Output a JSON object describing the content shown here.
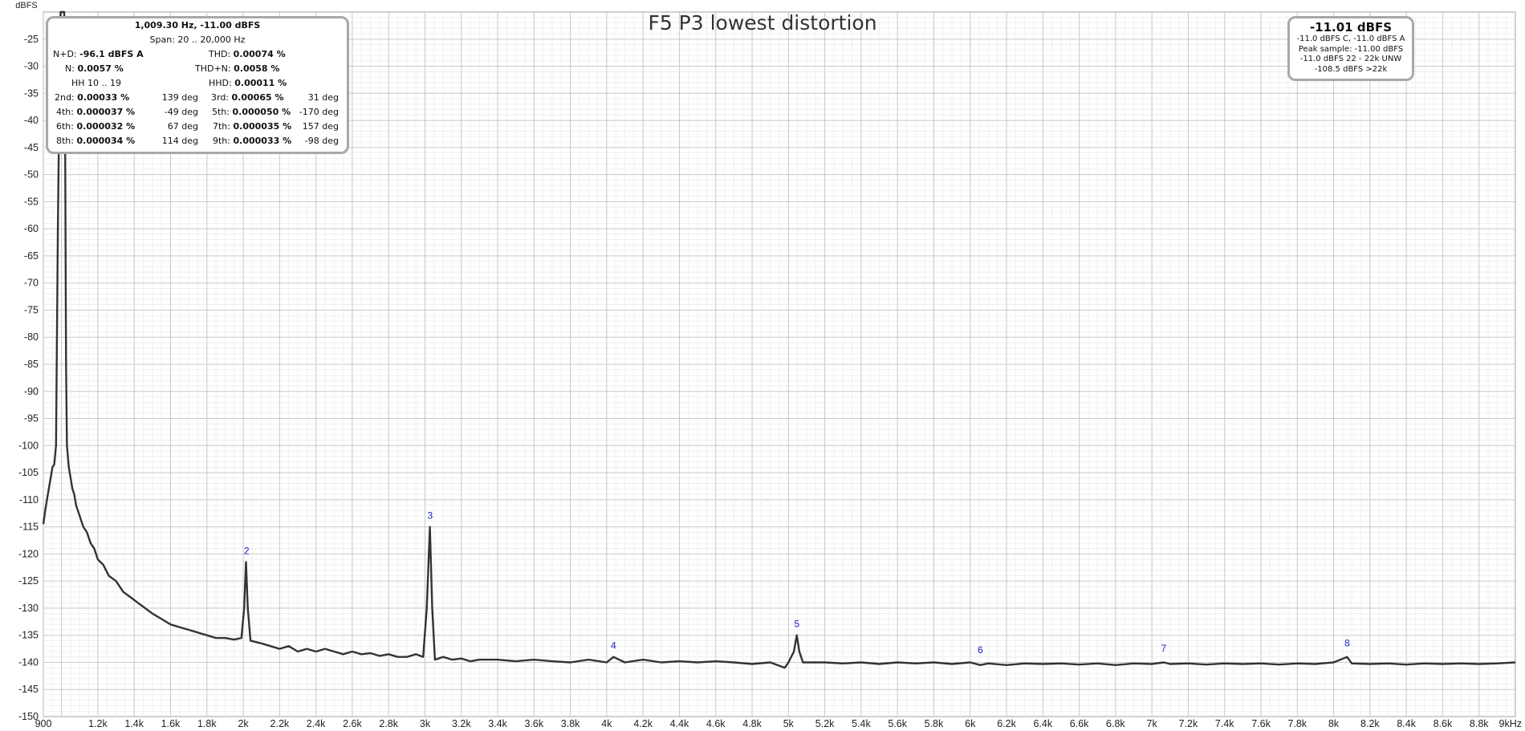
{
  "chart_data": {
    "type": "line",
    "title": "F5 P3 lowest distortion",
    "ylabel": "dBFS",
    "xlabel": "",
    "xlim": [
      900,
      9000
    ],
    "ylim": [
      -150,
      -20
    ],
    "x_ticks": [
      {
        "v": 900,
        "label": "900"
      },
      {
        "v": 1200,
        "label": "1.2k"
      },
      {
        "v": 1400,
        "label": "1.4k"
      },
      {
        "v": 1600,
        "label": "1.6k"
      },
      {
        "v": 1800,
        "label": "1.8k"
      },
      {
        "v": 2000,
        "label": "2k"
      },
      {
        "v": 2200,
        "label": "2.2k"
      },
      {
        "v": 2400,
        "label": "2.4k"
      },
      {
        "v": 2600,
        "label": "2.6k"
      },
      {
        "v": 2800,
        "label": "2.8k"
      },
      {
        "v": 3000,
        "label": "3k"
      },
      {
        "v": 3200,
        "label": "3.2k"
      },
      {
        "v": 3400,
        "label": "3.4k"
      },
      {
        "v": 3600,
        "label": "3.6k"
      },
      {
        "v": 3800,
        "label": "3.8k"
      },
      {
        "v": 4000,
        "label": "4k"
      },
      {
        "v": 4200,
        "label": "4.2k"
      },
      {
        "v": 4400,
        "label": "4.4k"
      },
      {
        "v": 4600,
        "label": "4.6k"
      },
      {
        "v": 4800,
        "label": "4.8k"
      },
      {
        "v": 5000,
        "label": "5k"
      },
      {
        "v": 5200,
        "label": "5.2k"
      },
      {
        "v": 5400,
        "label": "5.4k"
      },
      {
        "v": 5600,
        "label": "5.6k"
      },
      {
        "v": 5800,
        "label": "5.8k"
      },
      {
        "v": 6000,
        "label": "6k"
      },
      {
        "v": 6200,
        "label": "6.2k"
      },
      {
        "v": 6400,
        "label": "6.4k"
      },
      {
        "v": 6600,
        "label": "6.6k"
      },
      {
        "v": 6800,
        "label": "6.8k"
      },
      {
        "v": 7000,
        "label": "7k"
      },
      {
        "v": 7200,
        "label": "7.2k"
      },
      {
        "v": 7400,
        "label": "7.4k"
      },
      {
        "v": 7600,
        "label": "7.6k"
      },
      {
        "v": 7800,
        "label": "7.8k"
      },
      {
        "v": 8000,
        "label": "8k"
      },
      {
        "v": 8200,
        "label": "8.2k"
      },
      {
        "v": 8400,
        "label": "8.4k"
      },
      {
        "v": 8600,
        "label": "8.6k"
      },
      {
        "v": 8800,
        "label": "8.8k"
      },
      {
        "v": 9000,
        "label": "9kHz"
      }
    ],
    "y_ticks": [
      -25,
      -30,
      -35,
      -40,
      -45,
      -50,
      -55,
      -60,
      -65,
      -70,
      -75,
      -80,
      -85,
      -90,
      -95,
      -100,
      -105,
      -110,
      -115,
      -120,
      -125,
      -130,
      -135,
      -140,
      -145,
      -150
    ],
    "grid": true,
    "series": [
      {
        "color": "#333333",
        "points": [
          [
            900,
            -114.5
          ],
          [
            910,
            -112
          ],
          [
            920,
            -110
          ],
          [
            930,
            -108
          ],
          [
            940,
            -106
          ],
          [
            950,
            -104
          ],
          [
            960,
            -103.5
          ],
          [
            970,
            -100
          ],
          [
            980,
            -60
          ],
          [
            990,
            -30
          ],
          [
            995,
            -20
          ],
          [
            1000,
            -20
          ],
          [
            1005,
            -20
          ],
          [
            1009,
            -20
          ],
          [
            1015,
            -20
          ],
          [
            1020,
            -45
          ],
          [
            1025,
            -85
          ],
          [
            1030,
            -100
          ],
          [
            1040,
            -104
          ],
          [
            1050,
            -106
          ],
          [
            1060,
            -108
          ],
          [
            1070,
            -109
          ],
          [
            1080,
            -111
          ],
          [
            1100,
            -113
          ],
          [
            1120,
            -115
          ],
          [
            1140,
            -116
          ],
          [
            1160,
            -118
          ],
          [
            1180,
            -119
          ],
          [
            1200,
            -121
          ],
          [
            1230,
            -122
          ],
          [
            1260,
            -124
          ],
          [
            1300,
            -125
          ],
          [
            1340,
            -127
          ],
          [
            1380,
            -128
          ],
          [
            1420,
            -129
          ],
          [
            1460,
            -130
          ],
          [
            1500,
            -131
          ],
          [
            1550,
            -132
          ],
          [
            1600,
            -133
          ],
          [
            1650,
            -133.5
          ],
          [
            1700,
            -134
          ],
          [
            1750,
            -134.5
          ],
          [
            1800,
            -135
          ],
          [
            1850,
            -135.5
          ],
          [
            1900,
            -135.5
          ],
          [
            1950,
            -135.8
          ],
          [
            1990,
            -135.5
          ],
          [
            2005,
            -130
          ],
          [
            2015,
            -121.5
          ],
          [
            2025,
            -130
          ],
          [
            2040,
            -136
          ],
          [
            2100,
            -136.5
          ],
          [
            2150,
            -137
          ],
          [
            2200,
            -137.5
          ],
          [
            2250,
            -137
          ],
          [
            2300,
            -138
          ],
          [
            2350,
            -137.5
          ],
          [
            2400,
            -138
          ],
          [
            2450,
            -137.5
          ],
          [
            2500,
            -138
          ],
          [
            2550,
            -138.5
          ],
          [
            2600,
            -138
          ],
          [
            2650,
            -138.5
          ],
          [
            2700,
            -138.3
          ],
          [
            2750,
            -138.8
          ],
          [
            2800,
            -138.5
          ],
          [
            2850,
            -139
          ],
          [
            2900,
            -139
          ],
          [
            2950,
            -138.5
          ],
          [
            2990,
            -139
          ],
          [
            3010,
            -130
          ],
          [
            3027,
            -115
          ],
          [
            3040,
            -130
          ],
          [
            3055,
            -139.5
          ],
          [
            3100,
            -139
          ],
          [
            3150,
            -139.5
          ],
          [
            3200,
            -139.3
          ],
          [
            3250,
            -139.8
          ],
          [
            3300,
            -139.5
          ],
          [
            3400,
            -139.5
          ],
          [
            3500,
            -139.8
          ],
          [
            3600,
            -139.5
          ],
          [
            3700,
            -139.8
          ],
          [
            3800,
            -140
          ],
          [
            3900,
            -139.5
          ],
          [
            4000,
            -140
          ],
          [
            4037,
            -139
          ],
          [
            4100,
            -140
          ],
          [
            4200,
            -139.5
          ],
          [
            4300,
            -140
          ],
          [
            4400,
            -139.8
          ],
          [
            4500,
            -140
          ],
          [
            4600,
            -139.8
          ],
          [
            4700,
            -140
          ],
          [
            4800,
            -140.3
          ],
          [
            4900,
            -140
          ],
          [
            4980,
            -141
          ],
          [
            5000,
            -140
          ],
          [
            5030,
            -138
          ],
          [
            5046,
            -135
          ],
          [
            5060,
            -138
          ],
          [
            5080,
            -140
          ],
          [
            5100,
            -140
          ],
          [
            5200,
            -140
          ],
          [
            5300,
            -140.2
          ],
          [
            5400,
            -140
          ],
          [
            5500,
            -140.3
          ],
          [
            5600,
            -140
          ],
          [
            5700,
            -140.2
          ],
          [
            5800,
            -140
          ],
          [
            5900,
            -140.3
          ],
          [
            6000,
            -140
          ],
          [
            6056,
            -140.5
          ],
          [
            6100,
            -140.2
          ],
          [
            6200,
            -140.5
          ],
          [
            6300,
            -140.2
          ],
          [
            6400,
            -140.3
          ],
          [
            6500,
            -140.2
          ],
          [
            6600,
            -140.4
          ],
          [
            6700,
            -140.2
          ],
          [
            6800,
            -140.5
          ],
          [
            6900,
            -140.2
          ],
          [
            7000,
            -140.3
          ],
          [
            7065,
            -140
          ],
          [
            7100,
            -140.3
          ],
          [
            7200,
            -140.2
          ],
          [
            7300,
            -140.4
          ],
          [
            7400,
            -140.2
          ],
          [
            7500,
            -140.3
          ],
          [
            7600,
            -140.2
          ],
          [
            7700,
            -140.4
          ],
          [
            7800,
            -140.2
          ],
          [
            7900,
            -140.3
          ],
          [
            8000,
            -140
          ],
          [
            8074,
            -139
          ],
          [
            8100,
            -140.2
          ],
          [
            8200,
            -140.3
          ],
          [
            8300,
            -140.2
          ],
          [
            8400,
            -140.4
          ],
          [
            8500,
            -140.2
          ],
          [
            8600,
            -140.3
          ],
          [
            8700,
            -140.2
          ],
          [
            8800,
            -140.3
          ],
          [
            8900,
            -140.2
          ],
          [
            9000,
            -140
          ]
        ]
      }
    ],
    "harmonic_markers": [
      {
        "label": "2",
        "x": 2018.6,
        "y": -121.5
      },
      {
        "label": "3",
        "x": 3027.9,
        "y": -115
      },
      {
        "label": "4",
        "x": 4037.2,
        "y": -139
      },
      {
        "label": "5",
        "x": 5046.5,
        "y": -135
      },
      {
        "label": "6",
        "x": 6055.8,
        "y": -139.8
      },
      {
        "label": "7",
        "x": 7065.1,
        "y": -139.5
      },
      {
        "label": "8",
        "x": 8074.4,
        "y": -138.5
      }
    ],
    "marker_color": "#1a1acc"
  },
  "stats": {
    "header": "1,009.30 Hz, -11.00 dBFS",
    "span": "Span: 20 .. 20,000 Hz",
    "nd_label": "N+D:",
    "nd_value": "-96.1 dBFS A",
    "thd_label": "THD:",
    "thd_value": "0.00074 %",
    "n_label": "N:",
    "n_value": "0.0057 %",
    "thdn_label": "THD+N:",
    "thdn_value": "0.0058 %",
    "hh_label": "HH 10 .. 19",
    "hhd_label": "HHD:",
    "hhd_value": "0.00011 %",
    "h2_label": "2nd:",
    "h2_value": "0.00033 %",
    "h2_phase": "139 deg",
    "h3_label": "3rd:",
    "h3_value": "0.00065 %",
    "h3_phase": "31 deg",
    "h4_label": "4th:",
    "h4_value": "0.000037 %",
    "h4_phase": "-49 deg",
    "h5_label": "5th:",
    "h5_value": "0.000050 %",
    "h5_phase": "-170 deg",
    "h6_label": "6th:",
    "h6_value": "0.000032 %",
    "h6_phase": "67 deg",
    "h7_label": "7th:",
    "h7_value": "0.000035 %",
    "h7_phase": "157 deg",
    "h8_label": "8th:",
    "h8_value": "0.000034 %",
    "h8_phase": "114 deg",
    "h9_label": "9th:",
    "h9_value": "0.000033 %",
    "h9_phase": "-98 deg"
  },
  "level": {
    "big": "-11.01 dBFS",
    "line1": "-11.0 dBFS C, -11.0 dBFS A",
    "line2": "Peak sample: -11.00 dBFS",
    "line3": "-11.0 dBFS 22 - 22k UNW",
    "line4": "-108.5 dBFS >22k"
  }
}
